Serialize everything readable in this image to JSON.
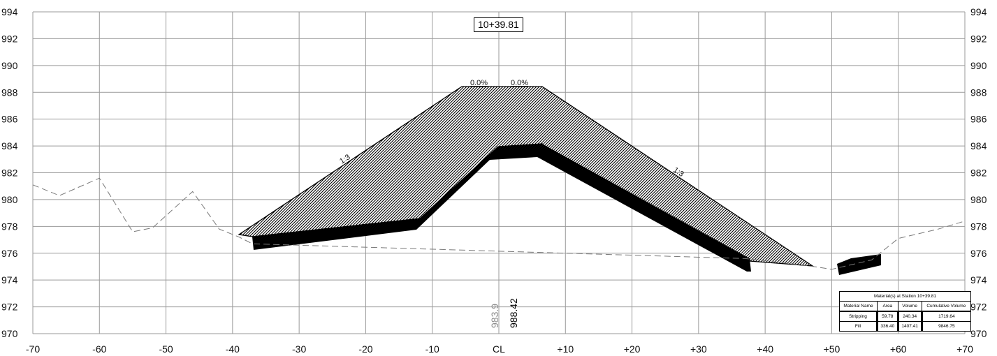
{
  "station_label": "10+39.81",
  "colors": {
    "grid": "#9a9a9a",
    "ground": "#7a7a7a",
    "fill": "#000000"
  },
  "axes": {
    "y_ticks": [
      "994",
      "992",
      "990",
      "988",
      "986",
      "984",
      "982",
      "980",
      "978",
      "976",
      "974",
      "972",
      "970"
    ],
    "x_ticks": [
      "-70",
      "-60",
      "-50",
      "-40",
      "-30",
      "-20",
      "-10",
      "CL",
      "+10",
      "+20",
      "+30",
      "+40",
      "+50",
      "+60",
      "+70"
    ]
  },
  "elevations": {
    "existing": "983.9",
    "design": "988.42"
  },
  "grades": {
    "left": "0.0%",
    "right": "0.0%"
  },
  "slopes": {
    "left": "1:3",
    "right": "1:3"
  },
  "existing_ground": {
    "offsets": [
      -70,
      -66,
      -60,
      -55,
      -52,
      -46,
      -42,
      -39,
      -37,
      37,
      46,
      50,
      56,
      60,
      66,
      70
    ],
    "elevations": [
      981.1,
      980.3,
      981.6,
      977.6,
      977.9,
      980.6,
      977.8,
      977.2,
      976.7,
      975.6,
      975.1,
      974.8,
      975.5,
      977.1,
      977.8,
      978.4
    ]
  },
  "material_table": {
    "title": "Material(s) at Station 10+39.81",
    "headers": [
      "Material Name",
      "Area",
      "Volume",
      "Cumulative Volume"
    ],
    "rows": [
      {
        "name": "Stripping",
        "area": "59.78",
        "volume": "240.34",
        "cumulative": "1719.64"
      },
      {
        "name": "Fill",
        "area": "336.40",
        "volume": "1407.41",
        "cumulative": "9846.75"
      }
    ]
  }
}
